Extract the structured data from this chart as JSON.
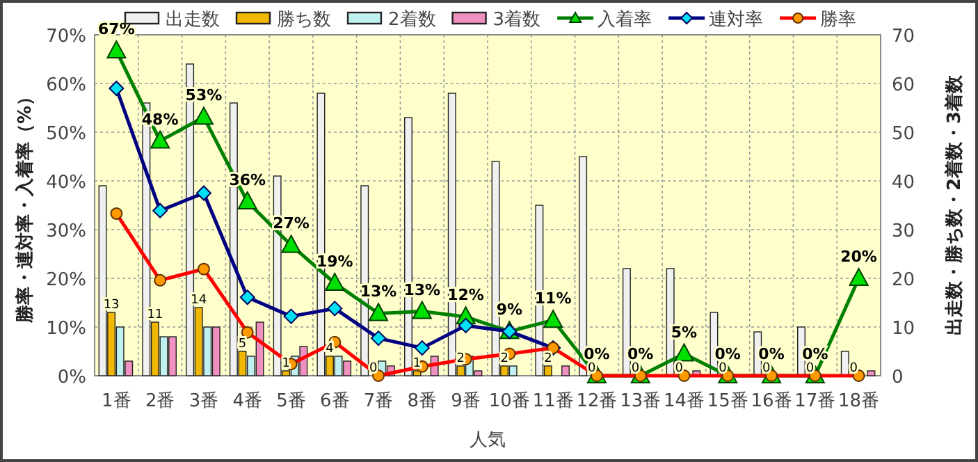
{
  "chart_data": {
    "type": "bar",
    "xlabel": "人気",
    "ylabel": "勝率・連対率・入着率（%）",
    "y2label": "出走数・勝ち数・2着数・3着数",
    "categories": [
      "1番",
      "2番",
      "3番",
      "4番",
      "5番",
      "6番",
      "7番",
      "8番",
      "9番",
      "10番",
      "11番",
      "12番",
      "13番",
      "14番",
      "15番",
      "16番",
      "17番",
      "18番"
    ],
    "series": [
      {
        "name": "出走数",
        "color": "#f0f0f0",
        "values": [
          39,
          56,
          64,
          56,
          41,
          58,
          39,
          53,
          58,
          44,
          35,
          45,
          22,
          22,
          13,
          9,
          10,
          5
        ]
      },
      {
        "name": "勝ち数",
        "color": "#f0b800",
        "values": [
          13,
          11,
          14,
          5,
          1,
          4,
          0,
          1,
          2,
          2,
          2,
          0,
          0,
          0,
          0,
          0,
          0,
          0
        ],
        "value_labels": [
          "13",
          "11",
          "14",
          "5",
          "1",
          "4",
          "0",
          "1",
          "2",
          "2",
          "2",
          "0",
          "0",
          "0",
          "0",
          "0",
          "0",
          "0"
        ]
      },
      {
        "name": "2着数",
        "color": "#c0f0f0",
        "values": [
          10,
          8,
          10,
          4,
          4,
          4,
          3,
          null,
          4,
          2,
          0,
          0,
          0,
          0,
          0,
          0,
          0,
          0
        ]
      },
      {
        "name": "3着数",
        "color": "#f090c0",
        "values": [
          3,
          8,
          10,
          11,
          6,
          3,
          2,
          4,
          1,
          0,
          2,
          0,
          0,
          1,
          0,
          0,
          0,
          1
        ]
      },
      {
        "name": "入着率",
        "type": "line",
        "color": "#008000",
        "marker": "triangle",
        "values": [
          66.7,
          48.2,
          53.1,
          35.7,
          26.8,
          19.0,
          12.8,
          13.2,
          12.1,
          9.1,
          11.4,
          0,
          0,
          4.5,
          0,
          0,
          0,
          20
        ],
        "value_labels": [
          "67%",
          "48%",
          "53%",
          "36%",
          "27%",
          "19%",
          "13%",
          "13%",
          "12%",
          "9%",
          "11%",
          "0%",
          "0%",
          "5%",
          "0%",
          "0%",
          "0%",
          "20%"
        ]
      },
      {
        "name": "連対率",
        "type": "line",
        "color": "#000080",
        "marker": "diamond",
        "values": [
          59.0,
          33.9,
          37.5,
          16.1,
          12.2,
          13.8,
          7.7,
          5.7,
          10.3,
          9.1,
          5.7,
          null,
          null,
          null,
          null,
          null,
          null,
          null
        ]
      },
      {
        "name": "勝率",
        "type": "line",
        "color": "#ff0000",
        "marker": "circle",
        "values": [
          33.3,
          19.6,
          21.9,
          8.9,
          2.4,
          6.9,
          0,
          1.9,
          3.4,
          4.5,
          5.7,
          0,
          0,
          0,
          0,
          0,
          0,
          0
        ]
      }
    ],
    "ylim": [
      0,
      70
    ],
    "yticks": [
      {
        "value": 0,
        "label": "0%"
      },
      {
        "value": 10,
        "label": "10%"
      },
      {
        "value": 20,
        "label": "20%"
      },
      {
        "value": 30,
        "label": "30%"
      },
      {
        "value": 40,
        "label": "40%"
      },
      {
        "value": 50,
        "label": "50%"
      },
      {
        "value": 60,
        "label": "60%"
      },
      {
        "value": 70,
        "label": "70%"
      }
    ],
    "y2lim": [
      0,
      70
    ],
    "y2ticks": [
      0,
      10,
      20,
      30,
      40,
      50,
      60,
      70
    ],
    "grid": true,
    "legend": "top"
  }
}
